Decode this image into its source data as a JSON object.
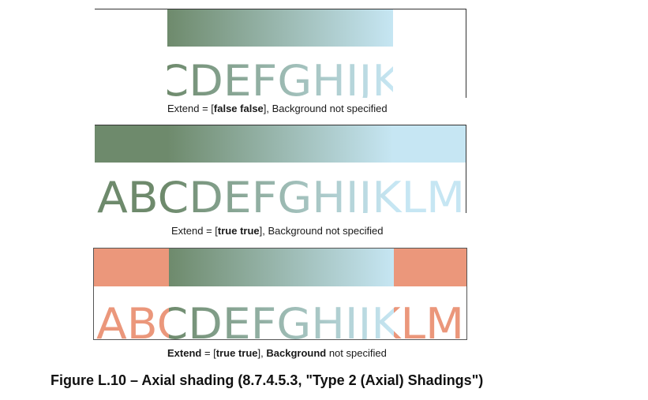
{
  "colors": {
    "gradient_start": "#6e8a6c",
    "gradient_end": "#c6e6f3",
    "background_color": "#eb977b"
  },
  "panels": [
    {
      "letters": "ABCDEFGHIJKLM",
      "caption": {
        "prefix": "Extend = [",
        "bold_value": "false false",
        "suffix": "], Background not specified"
      }
    },
    {
      "letters": "ABCDEFGHIJKLM",
      "caption": {
        "prefix": "Extend = [",
        "bold_value": "true true",
        "suffix": "], Background not specified"
      }
    },
    {
      "letters": "ABCDEFGHIJKLM",
      "caption": {
        "bold_extend": "Extend",
        "mid1": " = [",
        "bold_value": "true true",
        "mid2": "], ",
        "bold_background": "Background",
        "suffix": " not specified"
      }
    }
  ],
  "figure_caption": "Figure L.10 –  Axial shading (8.7.4.5.3, \"Type 2 (Axial) Shadings\")"
}
